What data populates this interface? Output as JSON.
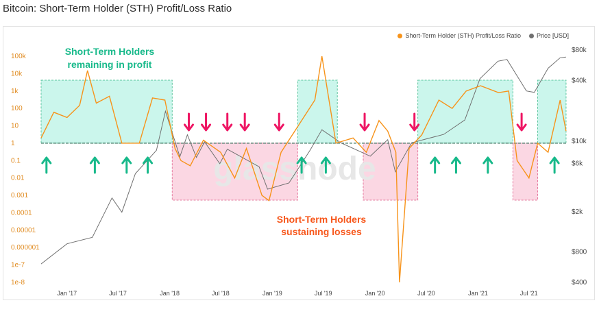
{
  "page": {
    "title": "Bitcoin: Short-Term Holder (STH) Profit/Loss Ratio"
  },
  "colors": {
    "ratio": "#f7931a",
    "ratio_above": "#d9952b",
    "price": "#707070",
    "profit_box": "#c6f6ea",
    "loss_box": "#fbd3e1",
    "up_arrow": "#17b98a",
    "down_arrow": "#ee1563"
  },
  "chart_data": {
    "type": "line",
    "legend": {
      "placement": "top-right",
      "items": [
        {
          "label": "Short-Term Holder (STH) Profit/Loss Ratio",
          "color": "#f7931a"
        },
        {
          "label": "Price [USD]",
          "color": "#707070"
        }
      ]
    },
    "x_ticks": [
      "Jan '17",
      "Jul '17",
      "Jan '18",
      "Jul '18",
      "Jan '19",
      "Jul '19",
      "Jan '20",
      "Jul '20",
      "Jan '21",
      "Jul '21"
    ],
    "y_left": {
      "scale": "log",
      "ticks": [
        "100k",
        "10k",
        "1k",
        "100",
        "10",
        "1",
        "0.1",
        "0.01",
        "0.001",
        "0.0001",
        "0.00001",
        "0.000001",
        "1e-7",
        "1e-8"
      ]
    },
    "y_right": {
      "scale": "log",
      "ticks": [
        "$80k",
        "$40k",
        "$10k",
        "$6k",
        "$2k",
        "$800",
        "$400"
      ]
    },
    "annotations": [
      {
        "text": "Short-Term Holders remaining in profit",
        "lines": [
          "Short-Term Holders",
          "remaining in profit"
        ],
        "color": "#17b98a"
      },
      {
        "text": "Short-Term Holders sustaining losses",
        "lines": [
          "Short-Term Holders",
          "sustaining losses"
        ],
        "color": "#f7561a"
      }
    ],
    "series": [
      {
        "name": "Short-Term Holder (STH) Profit/Loss Ratio",
        "points": [
          [
            "2016-10-01",
            2
          ],
          [
            "2016-11-15",
            60
          ],
          [
            "2017-01-01",
            30
          ],
          [
            "2017-02-15",
            150
          ],
          [
            "2017-03-15",
            15000
          ],
          [
            "2017-04-15",
            200
          ],
          [
            "2017-06-01",
            500
          ],
          [
            "2017-07-15",
            1
          ],
          [
            "2017-09-15",
            1
          ],
          [
            "2017-11-01",
            400
          ],
          [
            "2017-12-15",
            300
          ],
          [
            "2018-01-20",
            0.5
          ],
          [
            "2018-02-10",
            0.1
          ],
          [
            "2018-03-15",
            0.05
          ],
          [
            "2018-05-01",
            1.5
          ],
          [
            "2018-07-01",
            0.3
          ],
          [
            "2018-08-20",
            0.01
          ],
          [
            "2018-10-01",
            0.5
          ],
          [
            "2018-11-25",
            0.001
          ],
          [
            "2018-12-20",
            0.0005
          ],
          [
            "2019-02-01",
            0.3
          ],
          [
            "2019-04-15",
            20
          ],
          [
            "2019-06-01",
            300
          ],
          [
            "2019-06-26",
            100000
          ],
          [
            "2019-08-15",
            1
          ],
          [
            "2019-10-15",
            2
          ],
          [
            "2019-12-01",
            0.3
          ],
          [
            "2020-01-15",
            20
          ],
          [
            "2020-02-15",
            5
          ],
          [
            "2020-03-15",
            0.3
          ],
          [
            "2020-03-28",
            1e-08
          ],
          [
            "2020-05-01",
            0.5
          ],
          [
            "2020-06-15",
            3
          ],
          [
            "2020-08-15",
            300
          ],
          [
            "2020-10-01",
            100
          ],
          [
            "2020-11-20",
            1000
          ],
          [
            "2021-01-10",
            2000
          ],
          [
            "2021-03-15",
            800
          ],
          [
            "2021-04-20",
            1000
          ],
          [
            "2021-05-20",
            0.1
          ],
          [
            "2021-07-01",
            0.01
          ],
          [
            "2021-08-01",
            1
          ],
          [
            "2021-09-07",
            0.3
          ],
          [
            "2021-10-20",
            300
          ],
          [
            "2021-11-10",
            5
          ]
        ]
      },
      {
        "name": "Price [USD]",
        "points": [
          [
            "2016-10-01",
            600
          ],
          [
            "2017-01-01",
            950
          ],
          [
            "2017-04-01",
            1100
          ],
          [
            "2017-06-10",
            2700
          ],
          [
            "2017-07-15",
            1950
          ],
          [
            "2017-09-01",
            4700
          ],
          [
            "2017-11-15",
            8000
          ],
          [
            "2017-12-17",
            19500
          ],
          [
            "2018-02-06",
            6900
          ],
          [
            "2018-03-05",
            11400
          ],
          [
            "2018-04-06",
            6800
          ],
          [
            "2018-05-05",
            9700
          ],
          [
            "2018-06-28",
            5900
          ],
          [
            "2018-07-25",
            8200
          ],
          [
            "2018-11-15",
            5500
          ],
          [
            "2018-12-15",
            3300
          ],
          [
            "2019-03-01",
            3800
          ],
          [
            "2019-05-15",
            8000
          ],
          [
            "2019-06-26",
            12800
          ],
          [
            "2019-09-01",
            9500
          ],
          [
            "2019-12-15",
            7000
          ],
          [
            "2020-02-15",
            10200
          ],
          [
            "2020-03-13",
            4900
          ],
          [
            "2020-05-10",
            9500
          ],
          [
            "2020-09-01",
            11500
          ],
          [
            "2020-11-15",
            16000
          ],
          [
            "2021-01-08",
            41000
          ],
          [
            "2021-03-13",
            61000
          ],
          [
            "2021-04-14",
            63500
          ],
          [
            "2021-06-22",
            31000
          ],
          [
            "2021-07-20",
            30000
          ],
          [
            "2021-09-07",
            52000
          ],
          [
            "2021-10-20",
            66000
          ],
          [
            "2021-11-10",
            67000
          ]
        ]
      }
    ],
    "regions": [
      {
        "type": "profit",
        "start": "2016-10-01",
        "end": "2018-01-10"
      },
      {
        "type": "loss",
        "start": "2018-01-10",
        "end": "2019-04-01"
      },
      {
        "type": "profit",
        "start": "2019-04-01",
        "end": "2019-08-20"
      },
      {
        "type": "loss",
        "start": "2019-11-20",
        "end": "2020-06-01"
      },
      {
        "type": "profit",
        "start": "2020-06-01",
        "end": "2021-05-05"
      },
      {
        "type": "loss",
        "start": "2021-05-05",
        "end": "2021-08-01"
      },
      {
        "type": "profit",
        "start": "2021-08-01",
        "end": "2021-11-10"
      }
    ],
    "arrows_up": [
      "2016-10-20",
      "2017-04-10",
      "2017-08-01",
      "2017-10-15",
      "2019-04-15",
      "2019-07-10",
      "2020-08-01",
      "2020-10-15",
      "2021-02-05",
      "2021-09-30"
    ],
    "arrows_down": [
      "2018-03-10",
      "2018-05-10",
      "2018-07-25",
      "2018-09-25",
      "2019-01-25",
      "2019-11-25",
      "2020-05-20",
      "2021-06-05"
    ],
    "threshold": 1
  }
}
